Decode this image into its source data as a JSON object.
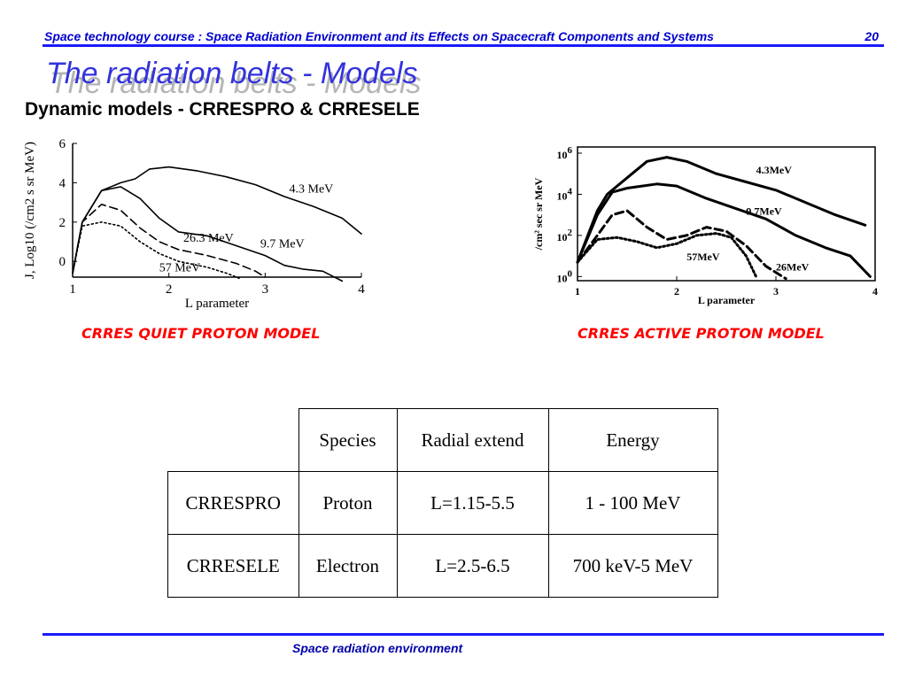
{
  "header": {
    "course_title": "Space technology course : Space Radiation Environment and its Effects on Spacecraft Components and Systems",
    "page_number": "20"
  },
  "slide": {
    "title": "The radiation belts - Models",
    "subtitle": "Dynamic models - CRRESPRO & CRRESELE"
  },
  "chart_data": [
    {
      "type": "line",
      "caption": "CRRES QUIET PROTON MODEL",
      "xlabel": "L parameter",
      "ylabel": "J, Log10 (/cm2 s sr MeV)",
      "xlim": [
        1,
        4
      ],
      "ylim": [
        -0.8,
        6
      ],
      "x_ticks": [
        "1",
        "2",
        "3",
        "4"
      ],
      "y_ticks": [
        "6",
        "4",
        "2",
        "0"
      ],
      "series": [
        {
          "name": "4.3 MeV",
          "style": "solid",
          "x": [
            1.0,
            1.1,
            1.3,
            1.5,
            1.65,
            1.8,
            2.0,
            2.3,
            2.6,
            2.9,
            3.2,
            3.5,
            3.8,
            4.0
          ],
          "y": [
            -0.6,
            2.0,
            3.6,
            4.0,
            4.2,
            4.7,
            4.8,
            4.6,
            4.3,
            3.9,
            3.3,
            2.8,
            2.2,
            1.4
          ]
        },
        {
          "name": "9.7 MeV",
          "style": "solid",
          "x": [
            1.0,
            1.1,
            1.3,
            1.5,
            1.7,
            1.9,
            2.1,
            2.4,
            2.7,
            3.0,
            3.2,
            3.4,
            3.6,
            3.8
          ],
          "y": [
            -0.6,
            2.0,
            3.6,
            3.8,
            3.2,
            2.2,
            1.5,
            1.3,
            0.8,
            0.3,
            -0.2,
            -0.4,
            -0.5,
            -1.0
          ]
        },
        {
          "name": "26.3 MeV",
          "style": "dashed",
          "x": [
            1.0,
            1.1,
            1.3,
            1.5,
            1.7,
            1.9,
            2.1,
            2.4,
            2.7,
            2.9,
            3.0
          ],
          "y": [
            -0.6,
            2.0,
            2.9,
            2.6,
            1.7,
            1.0,
            0.6,
            0.3,
            -0.1,
            -0.5,
            -0.8
          ]
        },
        {
          "name": "57 MeV",
          "style": "dotted",
          "x": [
            1.0,
            1.1,
            1.3,
            1.5,
            1.7,
            1.9,
            2.1,
            2.4,
            2.6,
            2.75
          ],
          "y": [
            -0.6,
            1.8,
            2.0,
            1.8,
            1.0,
            0.4,
            0.0,
            -0.3,
            -0.6,
            -0.9
          ]
        }
      ],
      "labels": [
        {
          "text": "4.3 MeV",
          "x": 3.25,
          "y": 3.5
        },
        {
          "text": "26.3 MeV",
          "x": 2.15,
          "y": 1.0
        },
        {
          "text": "9.7 MeV",
          "x": 2.95,
          "y": 0.7
        },
        {
          "text": "57 MeV",
          "x": 1.9,
          "y": -0.5
        }
      ]
    },
    {
      "type": "line",
      "caption": "CRRES ACTIVE PROTON MODEL",
      "xlabel": "L parameter",
      "ylabel": "/cm² sec sr MeV",
      "xlim": [
        1,
        4
      ],
      "ylim": [
        -0.2,
        6.3
      ],
      "x_ticks": [
        "1",
        "2",
        "3",
        "4"
      ],
      "y_ticks": [
        {
          "base": "10",
          "exp": "6",
          "value": 6
        },
        {
          "base": "10",
          "exp": "4",
          "value": 4
        },
        {
          "base": "10",
          "exp": "2",
          "value": 2
        },
        {
          "base": "10",
          "exp": "0",
          "value": 0
        }
      ],
      "series": [
        {
          "name": "4.3MeV",
          "style": "solid",
          "x": [
            1.0,
            1.2,
            1.3,
            1.5,
            1.7,
            1.9,
            2.1,
            2.4,
            2.7,
            3.0,
            3.3,
            3.6,
            3.9
          ],
          "y": [
            0.7,
            3.2,
            4.0,
            4.8,
            5.6,
            5.8,
            5.6,
            5.0,
            4.6,
            4.2,
            3.6,
            3.0,
            2.5
          ]
        },
        {
          "name": "9.7MeV",
          "style": "solid",
          "x": [
            1.0,
            1.2,
            1.35,
            1.5,
            1.8,
            2.0,
            2.3,
            2.6,
            2.9,
            3.2,
            3.5,
            3.75,
            3.85,
            3.95
          ],
          "y": [
            0.7,
            3.0,
            4.1,
            4.3,
            4.5,
            4.4,
            3.8,
            3.3,
            2.8,
            2.0,
            1.4,
            1.0,
            0.5,
            0.0
          ]
        },
        {
          "name": "26MeV",
          "style": "dashed",
          "x": [
            1.0,
            1.2,
            1.35,
            1.5,
            1.7,
            1.9,
            2.1,
            2.3,
            2.5,
            2.7,
            2.9,
            3.1
          ],
          "y": [
            0.7,
            2.0,
            3.0,
            3.2,
            2.4,
            1.8,
            2.0,
            2.4,
            2.2,
            1.5,
            0.5,
            -0.1
          ]
        },
        {
          "name": "57MeV",
          "style": "dotted",
          "x": [
            1.0,
            1.2,
            1.4,
            1.6,
            1.8,
            2.0,
            2.2,
            2.4,
            2.55,
            2.7,
            2.8
          ],
          "y": [
            0.7,
            1.8,
            1.9,
            1.7,
            1.4,
            1.6,
            2.0,
            2.1,
            1.9,
            1.0,
            0.0
          ]
        }
      ],
      "labels": [
        {
          "text": "4.3MeV",
          "x": 2.8,
          "y": 5.0
        },
        {
          "text": "9.7MeV",
          "x": 2.7,
          "y": 3.0
        },
        {
          "text": "57MeV",
          "x": 2.1,
          "y": 0.8
        },
        {
          "text": "26MeV",
          "x": 3.0,
          "y": 0.3
        }
      ]
    }
  ],
  "table": {
    "headers": [
      "",
      "Species",
      "Radial extend",
      "Energy"
    ],
    "rows": [
      [
        "CRRESPRO",
        "Proton",
        "L=1.15-5.5",
        "1 - 100 MeV"
      ],
      [
        "CRRESELE",
        "Electron",
        "L=2.5-6.5",
        "700 keV-5 MeV"
      ]
    ]
  },
  "footer": {
    "text": "Space radiation environment"
  },
  "colors": {
    "header_text": "#0000cc",
    "rule": "#1a1aff",
    "title_text": "#3333dd",
    "title_shadow": "#b5b5b5",
    "caption_text": "#ff0000",
    "footer_text": "#0000aa"
  }
}
